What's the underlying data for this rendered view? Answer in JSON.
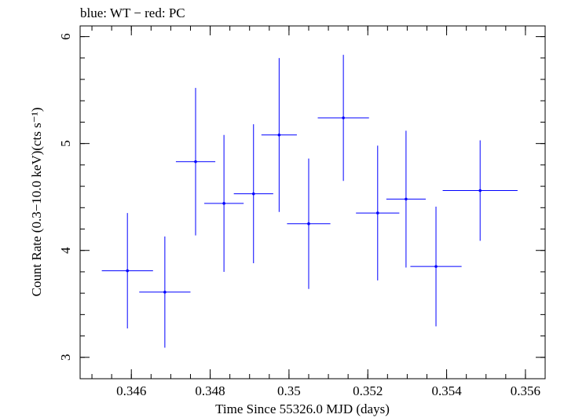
{
  "chart_data": {
    "type": "scatter",
    "title": "blue: WT − red: PC",
    "xlabel": "Time Since 55326.0 MJD (days)",
    "ylabel": "Count Rate (0.3−10.0 keV)(cts s⁻¹)",
    "xlim": [
      0.3447,
      0.3565
    ],
    "ylim": [
      2.8,
      6.1
    ],
    "x_ticks": [
      {
        "value": 0.346,
        "label": "0.346"
      },
      {
        "value": 0.348,
        "label": "0.348"
      },
      {
        "value": 0.35,
        "label": "0.35"
      },
      {
        "value": 0.352,
        "label": "0.352"
      },
      {
        "value": 0.354,
        "label": "0.354"
      },
      {
        "value": 0.356,
        "label": "0.356"
      }
    ],
    "x_minor_step": 0.0005,
    "y_ticks": [
      {
        "value": 3,
        "label": "3"
      },
      {
        "value": 4,
        "label": "4"
      },
      {
        "value": 5,
        "label": "5"
      },
      {
        "value": 6,
        "label": "6"
      }
    ],
    "y_minor_step": 0.2,
    "grid": false,
    "legend": "none",
    "series": [
      {
        "color": "#0000ff",
        "points": [
          {
            "x": 0.3459,
            "xerr": 0.00065,
            "y": 3.81,
            "yerr": 0.54
          },
          {
            "x": 0.34685,
            "xerr": 0.00065,
            "y": 3.61,
            "yerr": 0.52
          },
          {
            "x": 0.34763,
            "xerr": 0.0005,
            "y": 4.83,
            "yerr": 0.69
          },
          {
            "x": 0.34835,
            "xerr": 0.0005,
            "y": 4.44,
            "yerr": 0.64
          },
          {
            "x": 0.3491,
            "xerr": 0.0005,
            "y": 4.53,
            "yerr": 0.65
          },
          {
            "x": 0.34975,
            "xerr": 0.00045,
            "y": 5.08,
            "yerr": 0.72
          },
          {
            "x": 0.3505,
            "xerr": 0.00055,
            "y": 4.25,
            "yerr": 0.61
          },
          {
            "x": 0.35138,
            "xerr": 0.00065,
            "y": 5.24,
            "yerr": 0.59
          },
          {
            "x": 0.35225,
            "xerr": 0.00055,
            "y": 4.35,
            "yerr": 0.63
          },
          {
            "x": 0.35297,
            "xerr": 0.0005,
            "y": 4.48,
            "yerr": 0.64
          },
          {
            "x": 0.35373,
            "xerr": 0.00065,
            "y": 3.85,
            "yerr": 0.56
          },
          {
            "x": 0.35485,
            "xerr": 0.00095,
            "y": 4.56,
            "yerr": 0.47
          }
        ]
      }
    ]
  }
}
